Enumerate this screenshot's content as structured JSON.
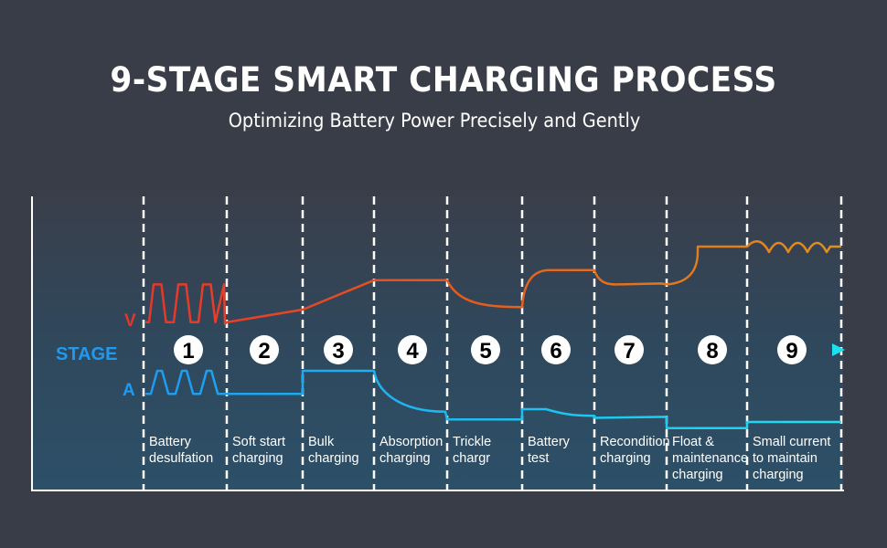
{
  "header": {
    "title": "9-STAGE SMART CHARGING PROCESS",
    "subtitle": "Optimizing Battery Power Precisely and Gently"
  },
  "legend": {
    "voltage_label": "V",
    "stage_label": "STAGE",
    "current_label": "A"
  },
  "colors": {
    "background": "#393d48",
    "panel_top": "#3a3f4b",
    "panel_bottom": "#2c5068",
    "stage_line": "#1eaaf0",
    "voltage_start": "#e8352a",
    "voltage_end": "#e0901c",
    "current": "#1eaaf0"
  },
  "chart_data": {
    "type": "line",
    "title": "9-STAGE SMART CHARGING PROCESS",
    "subtitle": "Optimizing Battery Power Precisely and Gently",
    "xlabel": "",
    "ylabel": "",
    "grid": false,
    "series_labels": [
      "V",
      "STAGE",
      "A"
    ],
    "stages": [
      {
        "number": "1",
        "name": [
          "Battery",
          "desulfation"
        ]
      },
      {
        "number": "2",
        "name": [
          "Soft start",
          "charging"
        ]
      },
      {
        "number": "3",
        "name": [
          "Bulk",
          "charging"
        ]
      },
      {
        "number": "4",
        "name": [
          "Absorption",
          "charging"
        ]
      },
      {
        "number": "5",
        "name": [
          "Trickle",
          "chargr"
        ]
      },
      {
        "number": "6",
        "name": [
          "Battery",
          "test"
        ]
      },
      {
        "number": "7",
        "name": [
          "Recondition",
          "charging"
        ]
      },
      {
        "number": "8",
        "name": [
          "Float &",
          "maintenance",
          "charging"
        ]
      },
      {
        "number": "9",
        "name": [
          "Small current",
          "to maintain",
          "charging"
        ]
      }
    ],
    "voltage_profile": [
      {
        "stage": 1,
        "shape": "pulses",
        "count": 3,
        "start": 0.1,
        "end": 0.1,
        "peak": 0.55
      },
      {
        "stage": 2,
        "shape": "ramp",
        "start": 0.1,
        "end": 0.25
      },
      {
        "stage": 3,
        "shape": "ramp",
        "start": 0.25,
        "end": 0.6
      },
      {
        "stage": 4,
        "shape": "flat",
        "start": 0.6,
        "end": 0.6
      },
      {
        "stage": 5,
        "shape": "decay",
        "start": 0.6,
        "end": 0.28
      },
      {
        "stage": 6,
        "shape": "rise",
        "start": 0.28,
        "end": 0.72
      },
      {
        "stage": 7,
        "shape": "dip",
        "start": 0.72,
        "end": 0.55
      },
      {
        "stage": 8,
        "shape": "rise",
        "start": 0.55,
        "end": 1.0
      },
      {
        "stage": 9,
        "shape": "ripple",
        "count": 4,
        "start": 1.0,
        "end": 1.0
      }
    ],
    "current_profile": [
      {
        "stage": 1,
        "shape": "pulses",
        "count": 3,
        "start": 0.55,
        "end": 0.55,
        "peak": 1.0
      },
      {
        "stage": 2,
        "shape": "flat",
        "start": 0.55,
        "end": 0.55
      },
      {
        "stage": 3,
        "shape": "flat",
        "start": 1.0,
        "end": 1.0
      },
      {
        "stage": 4,
        "shape": "decay",
        "start": 1.0,
        "end": 0.2
      },
      {
        "stage": 5,
        "shape": "flat",
        "start": 0.05,
        "end": 0.05
      },
      {
        "stage": 6,
        "shape": "step-decay",
        "start": 0.25,
        "end": 0.12
      },
      {
        "stage": 7,
        "shape": "flat",
        "start": 0.08,
        "end": 0.1
      },
      {
        "stage": 8,
        "shape": "flat",
        "start": -0.12,
        "end": -0.12
      },
      {
        "stage": 9,
        "shape": "flat",
        "start": 0.0,
        "end": 0.0
      }
    ]
  }
}
